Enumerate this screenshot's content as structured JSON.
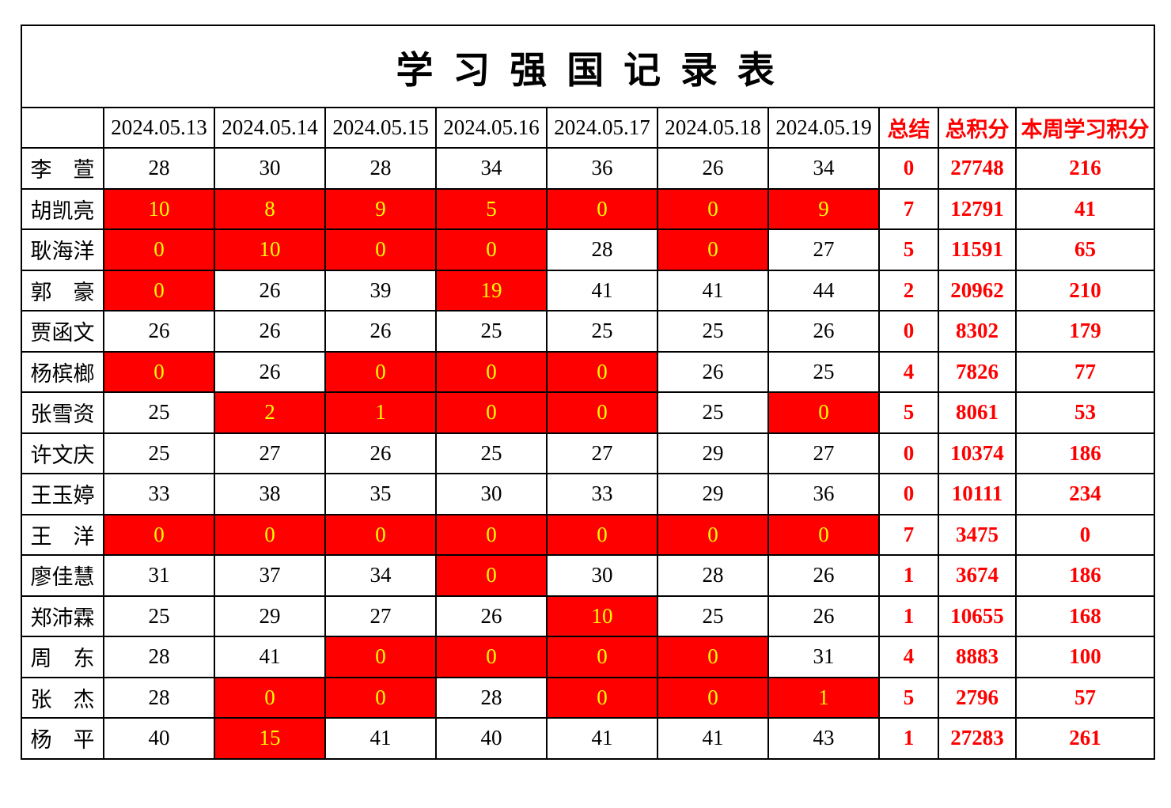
{
  "title": "学 习 强 国 记 录 表",
  "colors": {
    "flag_cell_background": "#ff0000",
    "flag_cell_text": "#ffff00",
    "summary_text": "#ff0000",
    "normal_text": "#000000",
    "grid_line": "#000000"
  },
  "table": {
    "name_column_header": "",
    "date_headers": [
      "2024.05.13",
      "2024.05.14",
      "2024.05.15",
      "2024.05.16",
      "2024.05.17",
      "2024.05.18",
      "2024.05.19"
    ],
    "summary_headers": [
      "总结",
      "总积分",
      "本周学习积分"
    ],
    "rows": [
      {
        "name": "李　萱",
        "days": [
          {
            "v": "28",
            "red": false
          },
          {
            "v": "30",
            "red": false
          },
          {
            "v": "28",
            "red": false
          },
          {
            "v": "34",
            "red": false
          },
          {
            "v": "36",
            "red": false
          },
          {
            "v": "26",
            "red": false
          },
          {
            "v": "34",
            "red": false
          }
        ],
        "summary": "0",
        "total": "27748",
        "week": "216"
      },
      {
        "name": "胡凯亮",
        "days": [
          {
            "v": "10",
            "red": true
          },
          {
            "v": "8",
            "red": true
          },
          {
            "v": "9",
            "red": true
          },
          {
            "v": "5",
            "red": true
          },
          {
            "v": "0",
            "red": true
          },
          {
            "v": "0",
            "red": true
          },
          {
            "v": "9",
            "red": true
          }
        ],
        "summary": "7",
        "total": "12791",
        "week": "41"
      },
      {
        "name": "耿海洋",
        "days": [
          {
            "v": "0",
            "red": true
          },
          {
            "v": "10",
            "red": true
          },
          {
            "v": "0",
            "red": true
          },
          {
            "v": "0",
            "red": true
          },
          {
            "v": "28",
            "red": false
          },
          {
            "v": "0",
            "red": true
          },
          {
            "v": "27",
            "red": false
          }
        ],
        "summary": "5",
        "total": "11591",
        "week": "65"
      },
      {
        "name": "郭　豪",
        "days": [
          {
            "v": "0",
            "red": true
          },
          {
            "v": "26",
            "red": false
          },
          {
            "v": "39",
            "red": false
          },
          {
            "v": "19",
            "red": true
          },
          {
            "v": "41",
            "red": false
          },
          {
            "v": "41",
            "red": false
          },
          {
            "v": "44",
            "red": false
          }
        ],
        "summary": "2",
        "total": "20962",
        "week": "210"
      },
      {
        "name": "贾函文",
        "days": [
          {
            "v": "26",
            "red": false
          },
          {
            "v": "26",
            "red": false
          },
          {
            "v": "26",
            "red": false
          },
          {
            "v": "25",
            "red": false
          },
          {
            "v": "25",
            "red": false
          },
          {
            "v": "25",
            "red": false
          },
          {
            "v": "26",
            "red": false
          }
        ],
        "summary": "0",
        "total": "8302",
        "week": "179"
      },
      {
        "name": "杨槟榔",
        "days": [
          {
            "v": "0",
            "red": true
          },
          {
            "v": "26",
            "red": false
          },
          {
            "v": "0",
            "red": true
          },
          {
            "v": "0",
            "red": true
          },
          {
            "v": "0",
            "red": true
          },
          {
            "v": "26",
            "red": false
          },
          {
            "v": "25",
            "red": false
          }
        ],
        "summary": "4",
        "total": "7826",
        "week": "77"
      },
      {
        "name": "张雪资",
        "days": [
          {
            "v": "25",
            "red": false
          },
          {
            "v": "2",
            "red": true
          },
          {
            "v": "1",
            "red": true
          },
          {
            "v": "0",
            "red": true
          },
          {
            "v": "0",
            "red": true
          },
          {
            "v": "25",
            "red": false
          },
          {
            "v": "0",
            "red": true
          }
        ],
        "summary": "5",
        "total": "8061",
        "week": "53"
      },
      {
        "name": "许文庆",
        "days": [
          {
            "v": "25",
            "red": false
          },
          {
            "v": "27",
            "red": false
          },
          {
            "v": "26",
            "red": false
          },
          {
            "v": "25",
            "red": false
          },
          {
            "v": "27",
            "red": false
          },
          {
            "v": "29",
            "red": false
          },
          {
            "v": "27",
            "red": false
          }
        ],
        "summary": "0",
        "total": "10374",
        "week": "186"
      },
      {
        "name": "王玉婷",
        "days": [
          {
            "v": "33",
            "red": false
          },
          {
            "v": "38",
            "red": false
          },
          {
            "v": "35",
            "red": false
          },
          {
            "v": "30",
            "red": false
          },
          {
            "v": "33",
            "red": false
          },
          {
            "v": "29",
            "red": false
          },
          {
            "v": "36",
            "red": false
          }
        ],
        "summary": "0",
        "total": "10111",
        "week": "234"
      },
      {
        "name": "王　洋",
        "days": [
          {
            "v": "0",
            "red": true
          },
          {
            "v": "0",
            "red": true
          },
          {
            "v": "0",
            "red": true
          },
          {
            "v": "0",
            "red": true
          },
          {
            "v": "0",
            "red": true
          },
          {
            "v": "0",
            "red": true
          },
          {
            "v": "0",
            "red": true
          }
        ],
        "summary": "7",
        "total": "3475",
        "week": "0"
      },
      {
        "name": "廖佳慧",
        "days": [
          {
            "v": "31",
            "red": false
          },
          {
            "v": "37",
            "red": false
          },
          {
            "v": "34",
            "red": false
          },
          {
            "v": "0",
            "red": true
          },
          {
            "v": "30",
            "red": false
          },
          {
            "v": "28",
            "red": false
          },
          {
            "v": "26",
            "red": false
          }
        ],
        "summary": "1",
        "total": "3674",
        "week": "186"
      },
      {
        "name": "郑沛霖",
        "days": [
          {
            "v": "25",
            "red": false
          },
          {
            "v": "29",
            "red": false
          },
          {
            "v": "27",
            "red": false
          },
          {
            "v": "26",
            "red": false
          },
          {
            "v": "10",
            "red": true
          },
          {
            "v": "25",
            "red": false
          },
          {
            "v": "26",
            "red": false
          }
        ],
        "summary": "1",
        "total": "10655",
        "week": "168"
      },
      {
        "name": "周　东",
        "days": [
          {
            "v": "28",
            "red": false
          },
          {
            "v": "41",
            "red": false
          },
          {
            "v": "0",
            "red": true
          },
          {
            "v": "0",
            "red": true
          },
          {
            "v": "0",
            "red": true
          },
          {
            "v": "0",
            "red": true
          },
          {
            "v": "31",
            "red": false
          }
        ],
        "summary": "4",
        "total": "8883",
        "week": "100"
      },
      {
        "name": "张　杰",
        "days": [
          {
            "v": "28",
            "red": false
          },
          {
            "v": "0",
            "red": true
          },
          {
            "v": "0",
            "red": true
          },
          {
            "v": "28",
            "red": false
          },
          {
            "v": "0",
            "red": true
          },
          {
            "v": "0",
            "red": true
          },
          {
            "v": "1",
            "red": true
          }
        ],
        "summary": "5",
        "total": "2796",
        "week": "57"
      },
      {
        "name": "杨　平",
        "days": [
          {
            "v": "40",
            "red": false
          },
          {
            "v": "15",
            "red": true
          },
          {
            "v": "41",
            "red": false
          },
          {
            "v": "40",
            "red": false
          },
          {
            "v": "41",
            "red": false
          },
          {
            "v": "41",
            "red": false
          },
          {
            "v": "43",
            "red": false
          }
        ],
        "summary": "1",
        "total": "27283",
        "week": "261"
      }
    ]
  }
}
